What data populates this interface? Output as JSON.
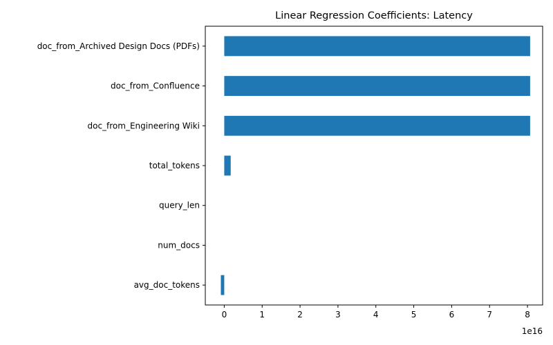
{
  "chart_data": {
    "type": "bar",
    "orientation": "horizontal",
    "title": "Linear Regression Coefficients: Latency",
    "xlabel": "",
    "ylabel": "",
    "x_offset_label": "1e16",
    "xlim": [
      -0.5,
      8.4
    ],
    "x_ticks": [
      0,
      1,
      2,
      3,
      4,
      5,
      6,
      7,
      8
    ],
    "value_unit_multiplier": "1e16",
    "categories": [
      "doc_from_Archived Design Docs (PDFs)",
      "doc_from_Confluence",
      "doc_from_Engineering Wiki",
      "total_tokens",
      "query_len",
      "num_docs",
      "avg_doc_tokens"
    ],
    "values": [
      8.07,
      8.07,
      8.07,
      0.17,
      0.0,
      0.0,
      -0.09
    ],
    "bar_color": "#1f77b4",
    "grid": false,
    "legend": "none"
  }
}
